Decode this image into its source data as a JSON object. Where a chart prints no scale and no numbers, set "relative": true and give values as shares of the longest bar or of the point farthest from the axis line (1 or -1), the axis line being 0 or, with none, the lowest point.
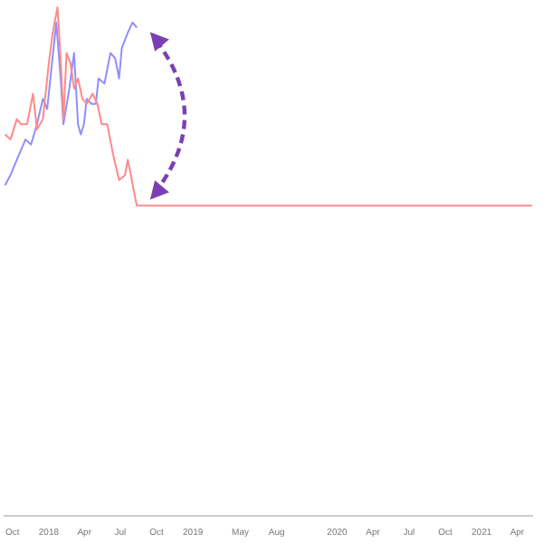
{
  "chart_data": {
    "type": "line",
    "relative": true,
    "grid": false,
    "legend": false,
    "marker": "none",
    "line_style": "solid",
    "xlim": [
      "2017-09-10",
      "2021-05-09"
    ],
    "xticks": [
      {
        "value": "2017-10-01",
        "label": "Oct"
      },
      {
        "value": "2018-01-01",
        "label": "2018"
      },
      {
        "value": "2018-04-01",
        "label": "Apr"
      },
      {
        "value": "2018-07-01",
        "label": "Jul"
      },
      {
        "value": "2018-10-01",
        "label": "Oct"
      },
      {
        "value": "2019-01-01",
        "label": "2019"
      },
      {
        "value": "2019-05-01",
        "label": "May"
      },
      {
        "value": "2019-08-01",
        "label": "Aug"
      },
      {
        "value": "2020-01-01",
        "label": "2020"
      },
      {
        "value": "2020-04-01",
        "label": "Apr"
      },
      {
        "value": "2020-07-01",
        "label": "Jul"
      },
      {
        "value": "2020-10-01",
        "label": "Oct"
      },
      {
        "value": "2021-01-01",
        "label": "2021"
      },
      {
        "value": "2021-04-01",
        "label": "Apr"
      }
    ],
    "series": [
      {
        "color": "#ff8a8a",
        "x": [
          "2017-09-12",
          "2017-09-26",
          "2017-10-12",
          "2017-10-23",
          "2017-11-07",
          "2017-11-22",
          "2017-12-02",
          "2017-12-17",
          "2018-01-01",
          "2018-01-11",
          "2018-01-23",
          "2018-01-31",
          "2018-02-07",
          "2018-02-15",
          "2018-02-25",
          "2018-03-06",
          "2018-03-16",
          "2018-03-27",
          "2018-04-07",
          "2018-04-22",
          "2018-05-04",
          "2018-05-15",
          "2018-05-29",
          "2018-06-13",
          "2018-06-28",
          "2018-07-13",
          "2018-07-20",
          "2018-07-28",
          "2018-08-04",
          "2018-08-12",
          "2021-05-09"
        ],
        "values": [
          0.75,
          0.74,
          0.78,
          0.77,
          0.77,
          0.83,
          0.76,
          0.78,
          0.89,
          0.95,
          1.0,
          0.9,
          0.78,
          0.91,
          0.89,
          0.84,
          0.86,
          0.82,
          0.81,
          0.83,
          0.81,
          0.77,
          0.77,
          0.71,
          0.66,
          0.67,
          0.7,
          0.67,
          0.64,
          0.61,
          0.61
        ]
      },
      {
        "color": "#8f8fff",
        "x": [
          "2017-09-12",
          "2017-09-26",
          "2017-10-12",
          "2017-11-03",
          "2017-11-17",
          "2017-12-02",
          "2017-12-17",
          "2017-12-28",
          "2018-01-09",
          "2018-01-20",
          "2018-01-31",
          "2018-02-07",
          "2018-02-22",
          "2018-03-06",
          "2018-03-16",
          "2018-03-23",
          "2018-03-31",
          "2018-04-07",
          "2018-04-19",
          "2018-04-30",
          "2018-05-07",
          "2018-05-22",
          "2018-06-06",
          "2018-06-18",
          "2018-06-28",
          "2018-07-05",
          "2018-07-20",
          "2018-08-01",
          "2018-08-12"
        ],
        "values": [
          0.65,
          0.67,
          0.7,
          0.74,
          0.73,
          0.77,
          0.82,
          0.8,
          0.89,
          0.97,
          0.86,
          0.77,
          0.84,
          0.91,
          0.77,
          0.75,
          0.77,
          0.82,
          0.81,
          0.81,
          0.86,
          0.85,
          0.91,
          0.9,
          0.86,
          0.92,
          0.95,
          0.97,
          0.96
        ]
      }
    ]
  }
}
